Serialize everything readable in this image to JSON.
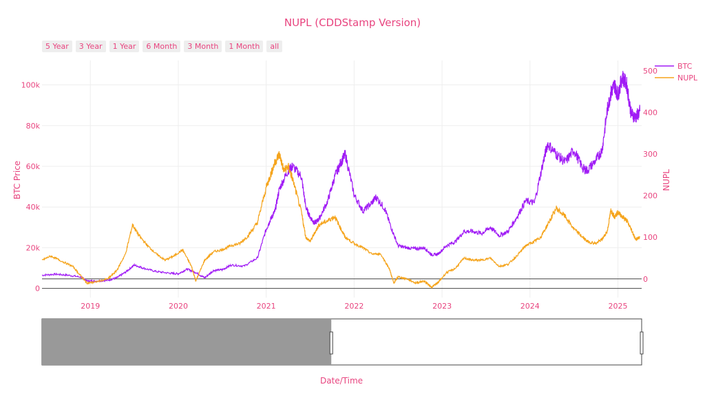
{
  "chart_data": {
    "type": "line",
    "title": "NUPL (CDDStamp Version)",
    "xlabel": "Date/Time",
    "ylabel": "BTC Price",
    "y2label": "NUPL",
    "xlim": [
      2018.45,
      2025.27
    ],
    "ylim": [
      -4500,
      112000
    ],
    "y2lim": [
      -45,
      525
    ],
    "x_ticks": [
      2019,
      2020,
      2021,
      2022,
      2023,
      2024,
      2025
    ],
    "x_tick_labels": [
      "2019",
      "2020",
      "2021",
      "2022",
      "2023",
      "2024",
      "2025"
    ],
    "y_ticks": [
      0,
      20000,
      40000,
      60000,
      80000,
      100000
    ],
    "y_tick_labels": [
      "0",
      "20k",
      "40k",
      "60k",
      "80k",
      "100k"
    ],
    "y2_ticks": [
      0,
      100,
      200,
      300,
      400,
      500
    ],
    "y2_tick_labels": [
      "0",
      "100",
      "200",
      "300",
      "400",
      "500"
    ],
    "grid": true,
    "legend_position": "top-right",
    "series": [
      {
        "name": "BTC",
        "axis": "y",
        "color": "#a01cf5",
        "x": [
          2018.45,
          2018.6,
          2018.75,
          2018.9,
          2018.96,
          2019.05,
          2019.2,
          2019.3,
          2019.4,
          2019.5,
          2019.6,
          2019.75,
          2019.9,
          2020.0,
          2020.1,
          2020.2,
          2020.3,
          2020.4,
          2020.5,
          2020.6,
          2020.75,
          2020.9,
          2021.0,
          2021.05,
          2021.1,
          2021.15,
          2021.25,
          2021.3,
          2021.4,
          2021.45,
          2021.5,
          2021.55,
          2021.6,
          2021.7,
          2021.78,
          2021.85,
          2021.9,
          2022.0,
          2022.1,
          2022.2,
          2022.25,
          2022.35,
          2022.42,
          2022.5,
          2022.6,
          2022.7,
          2022.8,
          2022.88,
          2022.95,
          2023.05,
          2023.15,
          2023.25,
          2023.35,
          2023.45,
          2023.55,
          2023.65,
          2023.75,
          2023.85,
          2023.95,
          2024.05,
          2024.15,
          2024.2,
          2024.3,
          2024.4,
          2024.5,
          2024.6,
          2024.65,
          2024.75,
          2024.82,
          2024.88,
          2024.92,
          2024.96,
          2025.0,
          2025.05,
          2025.1,
          2025.15,
          2025.2,
          2025.25
        ],
        "values": [
          6500,
          7000,
          6500,
          5500,
          3700,
          3600,
          4000,
          5200,
          8000,
          11500,
          10000,
          8300,
          7500,
          7200,
          9500,
          7800,
          5200,
          8800,
          9200,
          11500,
          11000,
          15000,
          29000,
          34000,
          38000,
          49000,
          58000,
          60000,
          55000,
          40000,
          35000,
          32000,
          34000,
          43000,
          55000,
          62000,
          66000,
          46000,
          38000,
          42000,
          45000,
          39000,
          30000,
          21000,
          20000,
          19500,
          20000,
          16500,
          16800,
          21000,
          23000,
          28000,
          28000,
          27000,
          30000,
          26000,
          28000,
          35000,
          43000,
          42000,
          62000,
          71000,
          66000,
          62000,
          68000,
          59000,
          58000,
          63000,
          68000,
          88000,
          96000,
          100000,
          95000,
          104000,
          100000,
          86000,
          84000,
          87000
        ]
      },
      {
        "name": "NUPL",
        "axis": "y2",
        "color": "#f5a41c",
        "x": [
          2018.45,
          2018.55,
          2018.65,
          2018.8,
          2018.9,
          2018.96,
          2019.05,
          2019.2,
          2019.3,
          2019.4,
          2019.48,
          2019.55,
          2019.65,
          2019.75,
          2019.85,
          2019.95,
          2020.05,
          2020.15,
          2020.2,
          2020.3,
          2020.4,
          2020.5,
          2020.6,
          2020.7,
          2020.8,
          2020.9,
          2021.0,
          2021.05,
          2021.1,
          2021.15,
          2021.2,
          2021.25,
          2021.3,
          2021.4,
          2021.45,
          2021.5,
          2021.55,
          2021.6,
          2021.7,
          2021.78,
          2021.85,
          2021.9,
          2022.0,
          2022.1,
          2022.2,
          2022.3,
          2022.4,
          2022.45,
          2022.5,
          2022.6,
          2022.7,
          2022.8,
          2022.88,
          2022.95,
          2023.05,
          2023.15,
          2023.25,
          2023.35,
          2023.45,
          2023.55,
          2023.65,
          2023.75,
          2023.85,
          2023.95,
          2024.05,
          2024.12,
          2024.2,
          2024.3,
          2024.4,
          2024.5,
          2024.6,
          2024.65,
          2024.75,
          2024.82,
          2024.88,
          2024.92,
          2024.96,
          2025.0,
          2025.05,
          2025.1,
          2025.15,
          2025.2,
          2025.25
        ],
        "values": [
          45,
          55,
          45,
          30,
          5,
          -10,
          -8,
          0,
          20,
          60,
          130,
          105,
          80,
          60,
          45,
          55,
          70,
          30,
          -5,
          45,
          65,
          70,
          80,
          85,
          105,
          135,
          220,
          250,
          280,
          300,
          260,
          270,
          240,
          160,
          100,
          90,
          110,
          130,
          140,
          150,
          120,
          100,
          85,
          75,
          60,
          60,
          25,
          -10,
          5,
          0,
          -10,
          -5,
          -20,
          -10,
          15,
          25,
          50,
          45,
          45,
          50,
          30,
          35,
          55,
          80,
          90,
          100,
          130,
          170,
          150,
          120,
          100,
          90,
          85,
          95,
          115,
          165,
          150,
          160,
          150,
          140,
          120,
          95,
          100
        ]
      }
    ],
    "range_selector": {
      "buttons": [
        "5 Year",
        "3 Year",
        "1 Year",
        "6 Month",
        "3 Month",
        "1 Month",
        "all"
      ]
    },
    "rangeslider": {
      "selected_range": [
        2018.45,
        2021.74
      ]
    }
  }
}
